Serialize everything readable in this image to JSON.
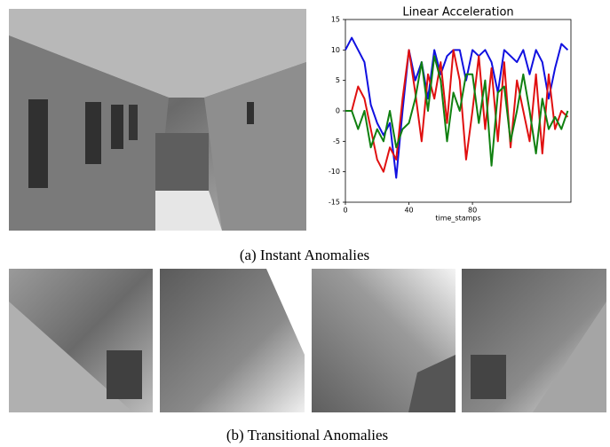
{
  "chart_data": {
    "type": "line",
    "title": "Linear Acceleration",
    "x_label": "time_stamps",
    "x": [
      0,
      4,
      8,
      12,
      16,
      20,
      24,
      28,
      32,
      36,
      40,
      44,
      48,
      52,
      56,
      60,
      64,
      68,
      72,
      76,
      80,
      84,
      88,
      92,
      96,
      100,
      104,
      108,
      112,
      116,
      120,
      124,
      128,
      132,
      136,
      140
    ],
    "series": [
      {
        "color": "#1010e0",
        "values": [
          10,
          12,
          10,
          8,
          1,
          -2,
          -4,
          -2,
          -11,
          0,
          10,
          5,
          8,
          2,
          10,
          6,
          9,
          10,
          10,
          5,
          10,
          9,
          10,
          8,
          3,
          10,
          9,
          8,
          10,
          6,
          10,
          8,
          2,
          7,
          11,
          10
        ]
      },
      {
        "color": "#e01010",
        "values": [
          0,
          0,
          4,
          2,
          -3,
          -8,
          -10,
          -6,
          -8,
          2,
          10,
          3,
          -5,
          6,
          2,
          8,
          -2,
          10,
          5,
          -8,
          0,
          9,
          -3,
          7,
          -5,
          8,
          -6,
          5,
          0,
          -5,
          6,
          -7,
          6,
          -3,
          0,
          -1
        ]
      },
      {
        "color": "#108010",
        "values": [
          0,
          0,
          -3,
          0,
          -6,
          -3,
          -5,
          0,
          -6,
          -3,
          -2,
          2,
          8,
          0,
          9,
          5,
          -5,
          3,
          0,
          6,
          6,
          -2,
          5,
          -9,
          3,
          4,
          -5,
          0,
          6,
          0,
          -7,
          2,
          -3,
          -1,
          -3,
          0
        ]
      }
    ],
    "xlim": [
      0,
      142
    ],
    "xticks": [
      0,
      40,
      80
    ],
    "ylim": [
      -15,
      15
    ],
    "yticks": [
      -15,
      -10,
      -5,
      0,
      5,
      10,
      15
    ],
    "grid": false
  },
  "captions": [
    "(a) Instant Anomalies",
    "(b) Transitional Anomalies"
  ]
}
